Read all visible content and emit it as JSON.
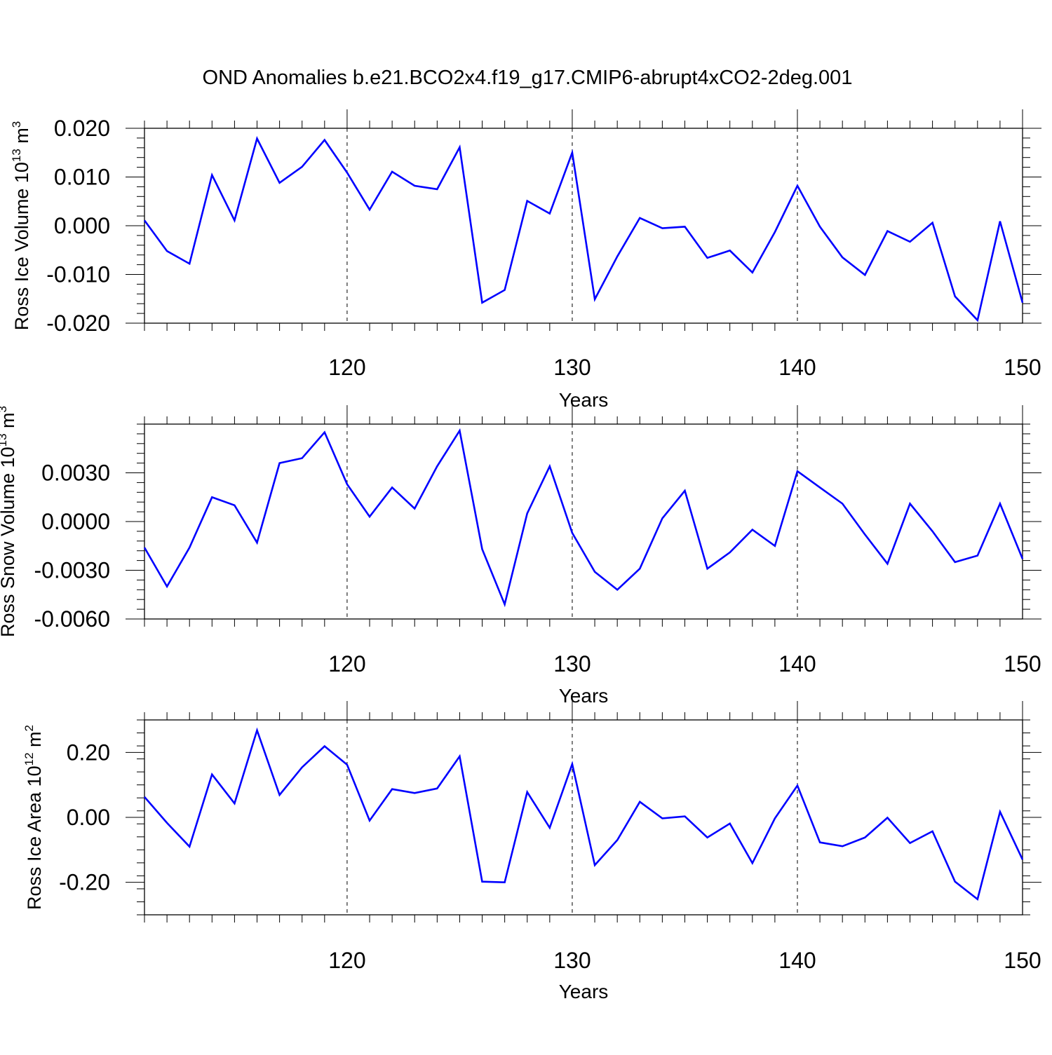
{
  "title": "OND Anomalies b.e21.BCO2x4.f19_g17.CMIP6-abrupt4xCO2-2deg.001",
  "chart_data": [
    {
      "type": "line",
      "title": "OND Anomalies b.e21.BCO2x4.f19_g17.CMIP6-abrupt4xCO2-2deg.001",
      "xlabel": "Years",
      "ylabel": {
        "text": "Ross Ice Volume 10",
        "exponent": "13",
        "unit": " m",
        "unit_exponent": "3"
      },
      "xlim": [
        111,
        150
      ],
      "ylim": [
        -0.02,
        0.02
      ],
      "x_ticks": [
        120,
        130,
        140,
        150
      ],
      "x_tick_labels": [
        "120",
        "130",
        "140",
        "150"
      ],
      "y_ticks": [
        0.02,
        0.01,
        0.0,
        -0.01,
        -0.02
      ],
      "y_tick_labels": [
        "0.020",
        "0.010",
        "0.000",
        "-0.010",
        "-0.020"
      ],
      "grid": "dashed vertical at x ticks",
      "color": "#0000ff",
      "x": [
        111,
        112,
        113,
        114,
        115,
        116,
        117,
        118,
        119,
        120,
        121,
        122,
        123,
        124,
        125,
        126,
        127,
        128,
        129,
        130,
        131,
        132,
        133,
        134,
        135,
        136,
        137,
        138,
        139,
        140,
        141,
        142,
        143,
        144,
        145,
        146,
        147,
        148,
        149,
        150
      ],
      "values": [
        0.0011,
        -0.0052,
        -0.0078,
        0.0104,
        0.0011,
        0.0179,
        0.0088,
        0.0121,
        0.0176,
        0.0109,
        0.0033,
        0.0111,
        0.0082,
        0.0075,
        0.0161,
        -0.0158,
        -0.0132,
        0.0051,
        0.0025,
        0.015,
        -0.0151,
        -0.0063,
        0.0016,
        -0.0005,
        -0.0002,
        -0.0066,
        -0.0051,
        -0.0096,
        -0.0013,
        0.0082,
        -0.0002,
        -0.0065,
        -0.0101,
        -0.0011,
        -0.0033,
        0.0006,
        -0.0145,
        -0.0194,
        0.0009,
        -0.0158
      ]
    },
    {
      "type": "line",
      "xlabel": "Years",
      "ylabel": {
        "text": "Ross Snow Volume 10",
        "exponent": "13",
        "unit": " m",
        "unit_exponent": "3"
      },
      "xlim": [
        111,
        150
      ],
      "ylim": [
        -0.006,
        0.006
      ],
      "x_ticks": [
        120,
        130,
        140,
        150
      ],
      "x_tick_labels": [
        "120",
        "130",
        "140",
        "150"
      ],
      "y_ticks": [
        0.003,
        0.0,
        -0.003,
        -0.006
      ],
      "y_tick_labels": [
        "0.0030",
        "0.0000",
        "-0.0030",
        "-0.0060"
      ],
      "grid": "dashed vertical at x ticks",
      "color": "#0000ff",
      "x": [
        111,
        112,
        113,
        114,
        115,
        116,
        117,
        118,
        119,
        120,
        121,
        122,
        123,
        124,
        125,
        126,
        127,
        128,
        129,
        130,
        131,
        132,
        133,
        134,
        135,
        136,
        137,
        138,
        139,
        140,
        141,
        142,
        143,
        144,
        145,
        146,
        147,
        148,
        149,
        150
      ],
      "values": [
        -0.0016,
        -0.004,
        -0.0016,
        0.0015,
        0.001,
        -0.0013,
        0.0036,
        0.0039,
        0.0055,
        0.0023,
        0.0003,
        0.0021,
        0.0008,
        0.0034,
        0.0056,
        -0.0017,
        -0.0051,
        0.0005,
        0.0034,
        -0.0007,
        -0.0031,
        -0.0042,
        -0.0029,
        0.0002,
        0.0019,
        -0.0029,
        -0.0019,
        -0.0005,
        -0.0015,
        0.0031,
        0.0021,
        0.0011,
        -0.0008,
        -0.0026,
        0.0011,
        -0.0006,
        -0.0025,
        -0.0021,
        0.0011,
        -0.0023
      ]
    },
    {
      "type": "line",
      "xlabel": "Years",
      "ylabel": {
        "text": "Ross Ice Area 10",
        "exponent": "12",
        "unit": " m",
        "unit_exponent": "2"
      },
      "xlim": [
        111,
        150
      ],
      "ylim": [
        -0.3,
        0.3
      ],
      "x_ticks": [
        120,
        130,
        140,
        150
      ],
      "x_tick_labels": [
        "120",
        "130",
        "140",
        "150"
      ],
      "y_ticks": [
        0.2,
        0.0,
        -0.2
      ],
      "y_tick_labels": [
        "0.20",
        "0.00",
        "-0.20"
      ],
      "grid": "dashed vertical at x ticks",
      "color": "#0000ff",
      "x": [
        111,
        112,
        113,
        114,
        115,
        116,
        117,
        118,
        119,
        120,
        121,
        122,
        123,
        124,
        125,
        126,
        127,
        128,
        129,
        130,
        131,
        132,
        133,
        134,
        135,
        136,
        137,
        138,
        139,
        140,
        141,
        142,
        143,
        144,
        145,
        146,
        147,
        148,
        149,
        150
      ],
      "values": [
        0.063,
        -0.017,
        -0.09,
        0.132,
        0.043,
        0.268,
        0.069,
        0.154,
        0.219,
        0.162,
        -0.01,
        0.087,
        0.075,
        0.089,
        0.188,
        -0.198,
        -0.2,
        0.078,
        -0.032,
        0.164,
        -0.147,
        -0.07,
        0.048,
        -0.003,
        0.003,
        -0.062,
        -0.019,
        -0.141,
        -0.003,
        0.098,
        -0.077,
        -0.089,
        -0.062,
        -0.001,
        -0.079,
        -0.043,
        -0.198,
        -0.252,
        0.017,
        -0.13
      ]
    }
  ]
}
